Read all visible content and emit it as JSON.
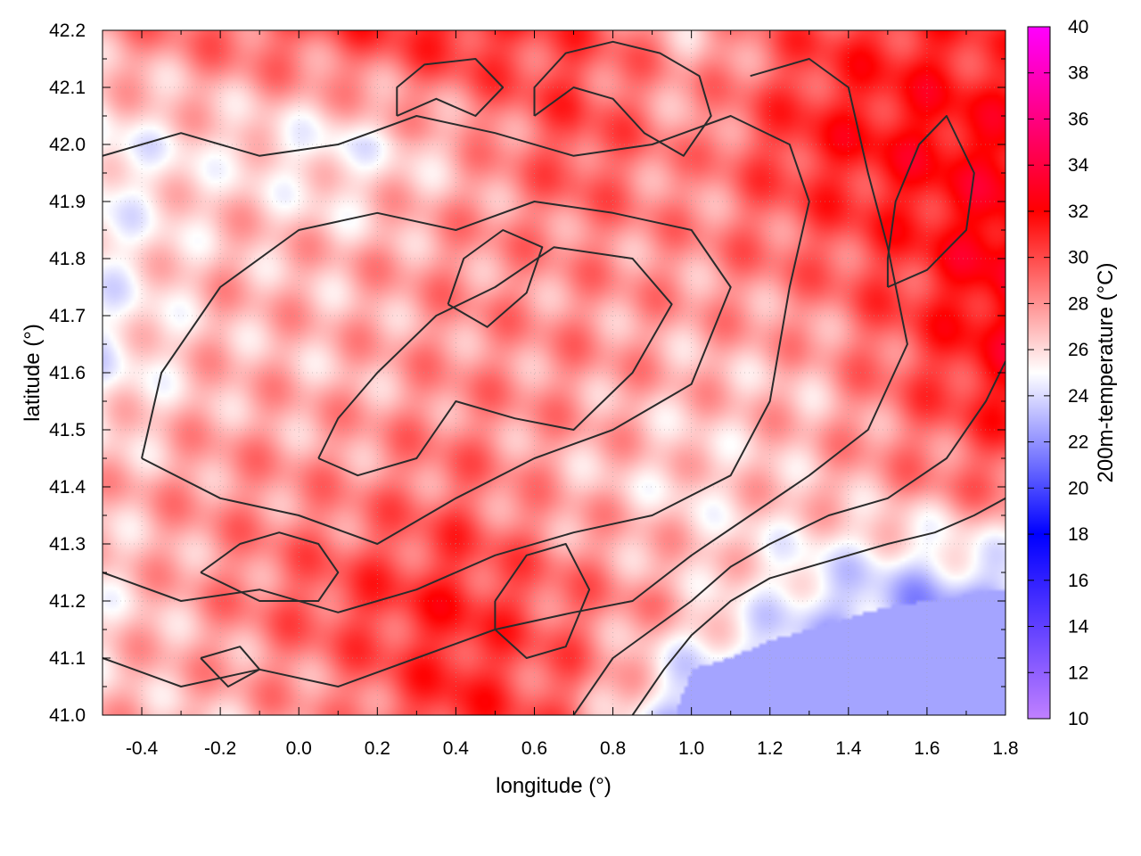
{
  "chart_data": {
    "type": "heatmap",
    "title": "",
    "xlabel": "longitude (°)",
    "ylabel": "latitude (°)",
    "colorbar_label": "200m-temperature (°C)",
    "xlim": [
      -0.5,
      1.8
    ],
    "ylim": [
      41.0,
      42.2
    ],
    "zlim": [
      10,
      40
    ],
    "x_ticks": [
      -0.4,
      -0.2,
      0.0,
      0.2,
      0.4,
      0.6,
      0.8,
      1.0,
      1.2,
      1.4,
      1.6,
      1.8
    ],
    "x_tick_labels": [
      "-0.4",
      "-0.2",
      "0.0",
      "0.2",
      "0.4",
      "0.6",
      "0.8",
      "1.0",
      "1.2",
      "1.4",
      "1.6",
      "1.8"
    ],
    "y_ticks": [
      41.0,
      41.1,
      41.2,
      41.3,
      41.4,
      41.5,
      41.6,
      41.7,
      41.8,
      41.9,
      42.0,
      42.1,
      42.2
    ],
    "y_tick_labels": [
      "41.0",
      "41.1",
      "41.2",
      "41.3",
      "41.4",
      "41.5",
      "41.6",
      "41.7",
      "41.8",
      "41.9",
      "42.0",
      "42.1",
      "42.2"
    ],
    "z_ticks": [
      10,
      12,
      14,
      16,
      18,
      20,
      22,
      24,
      26,
      28,
      30,
      32,
      34,
      36,
      38,
      40
    ],
    "z_tick_labels": [
      "10",
      "12",
      "14",
      "16",
      "18",
      "20",
      "22",
      "24",
      "26",
      "28",
      "30",
      "32",
      "34",
      "36",
      "38",
      "40"
    ],
    "colormap": [
      {
        "value": 10,
        "color": "#c080ff"
      },
      {
        "value": 18,
        "color": "#0000ff"
      },
      {
        "value": 25,
        "color": "#ffffff"
      },
      {
        "value": 32,
        "color": "#ff0000"
      },
      {
        "value": 36,
        "color": "#ff0080"
      },
      {
        "value": 40,
        "color": "#ff00ff"
      }
    ],
    "grid": true,
    "sea_value": 22.5,
    "coastline": [
      [
        0.96,
        41.0
      ],
      [
        1.0,
        41.08
      ],
      [
        1.1,
        41.1
      ],
      [
        1.2,
        41.13
      ],
      [
        1.3,
        41.15
      ],
      [
        1.4,
        41.17
      ],
      [
        1.5,
        41.19
      ],
      [
        1.6,
        41.2
      ],
      [
        1.7,
        41.21
      ],
      [
        1.8,
        41.22
      ]
    ],
    "temperature_grid": {
      "x": [
        -0.5,
        -0.2,
        0.1,
        0.4,
        0.7,
        1.0,
        1.3,
        1.6,
        1.8
      ],
      "y": [
        41.0,
        41.2,
        41.4,
        41.6,
        41.8,
        42.0,
        42.2
      ],
      "z": [
        [
          27,
          27,
          28,
          31,
          29,
          22.5,
          22.5,
          22.5,
          22.5
        ],
        [
          26,
          28,
          30,
          31,
          29,
          27,
          24,
          22.5,
          22.5
        ],
        [
          27,
          28,
          28,
          29,
          27,
          26,
          27,
          28,
          29
        ],
        [
          25,
          27,
          27,
          28,
          28,
          27,
          27,
          30,
          32
        ],
        [
          25,
          27,
          27,
          28,
          28,
          28,
          29,
          31,
          33
        ],
        [
          25,
          26,
          25,
          27,
          30,
          28,
          31,
          32,
          32
        ],
        [
          28,
          29,
          30,
          31,
          30,
          27,
          30,
          31,
          30
        ]
      ]
    },
    "contours": [
      [
        [
          0.05,
          41.45
        ],
        [
          0.15,
          41.42
        ],
        [
          0.3,
          41.45
        ],
        [
          0.4,
          41.55
        ],
        [
          0.55,
          41.52
        ],
        [
          0.7,
          41.5
        ],
        [
          0.85,
          41.6
        ],
        [
          0.95,
          41.72
        ],
        [
          0.85,
          41.8
        ],
        [
          0.65,
          41.82
        ],
        [
          0.5,
          41.75
        ],
        [
          0.35,
          41.7
        ],
        [
          0.2,
          41.6
        ],
        [
          0.1,
          41.52
        ],
        [
          0.05,
          41.45
        ]
      ],
      [
        [
          -0.4,
          41.45
        ],
        [
          -0.2,
          41.38
        ],
        [
          0.0,
          41.35
        ],
        [
          0.2,
          41.3
        ],
        [
          0.4,
          41.38
        ],
        [
          0.6,
          41.45
        ],
        [
          0.8,
          41.5
        ],
        [
          1.0,
          41.58
        ],
        [
          1.1,
          41.75
        ],
        [
          1.0,
          41.85
        ],
        [
          0.8,
          41.88
        ],
        [
          0.6,
          41.9
        ],
        [
          0.4,
          41.85
        ],
        [
          0.2,
          41.88
        ],
        [
          0.0,
          41.85
        ],
        [
          -0.2,
          41.75
        ],
        [
          -0.35,
          41.6
        ],
        [
          -0.4,
          41.45
        ]
      ],
      [
        [
          -0.5,
          41.25
        ],
        [
          -0.3,
          41.2
        ],
        [
          -0.1,
          41.22
        ],
        [
          0.1,
          41.18
        ],
        [
          0.3,
          41.22
        ],
        [
          0.5,
          41.28
        ],
        [
          0.7,
          41.32
        ],
        [
          0.9,
          41.35
        ],
        [
          1.1,
          41.42
        ],
        [
          1.2,
          41.55
        ],
        [
          1.25,
          41.75
        ],
        [
          1.3,
          41.9
        ],
        [
          1.25,
          42.0
        ],
        [
          1.1,
          42.05
        ],
        [
          0.9,
          42.0
        ],
        [
          0.7,
          41.98
        ],
        [
          0.5,
          42.02
        ],
        [
          0.3,
          42.05
        ],
        [
          0.1,
          42.0
        ],
        [
          -0.1,
          41.98
        ],
        [
          -0.3,
          42.02
        ],
        [
          -0.5,
          41.98
        ]
      ],
      [
        [
          -0.5,
          41.1
        ],
        [
          -0.3,
          41.05
        ],
        [
          -0.1,
          41.08
        ],
        [
          0.1,
          41.05
        ],
        [
          0.3,
          41.1
        ],
        [
          0.5,
          41.15
        ],
        [
          0.7,
          41.18
        ],
        [
          0.85,
          41.2
        ],
        [
          1.0,
          41.28
        ],
        [
          1.15,
          41.35
        ],
        [
          1.3,
          41.42
        ],
        [
          1.45,
          41.5
        ],
        [
          1.55,
          41.65
        ],
        [
          1.5,
          41.82
        ],
        [
          1.45,
          41.95
        ],
        [
          1.4,
          42.1
        ],
        [
          1.3,
          42.15
        ],
        [
          1.15,
          42.12
        ]
      ],
      [
        [
          0.7,
          41.0
        ],
        [
          0.8,
          41.1
        ],
        [
          0.9,
          41.15
        ],
        [
          1.0,
          41.2
        ],
        [
          1.1,
          41.26
        ],
        [
          1.2,
          41.3
        ],
        [
          1.35,
          41.35
        ],
        [
          1.5,
          41.38
        ],
        [
          1.65,
          41.45
        ],
        [
          1.75,
          41.55
        ],
        [
          1.8,
          41.62
        ]
      ],
      [
        [
          0.85,
          41.0
        ],
        [
          0.93,
          41.08
        ],
        [
          1.0,
          41.14
        ],
        [
          1.1,
          41.2
        ],
        [
          1.2,
          41.24
        ],
        [
          1.35,
          41.27
        ],
        [
          1.5,
          41.3
        ],
        [
          1.62,
          41.32
        ],
        [
          1.72,
          41.35
        ],
        [
          1.8,
          41.38
        ]
      ],
      [
        [
          0.38,
          41.72
        ],
        [
          0.48,
          41.68
        ],
        [
          0.58,
          41.74
        ],
        [
          0.62,
          41.82
        ],
        [
          0.52,
          41.85
        ],
        [
          0.42,
          41.8
        ],
        [
          0.38,
          41.72
        ]
      ],
      [
        [
          0.6,
          42.05
        ],
        [
          0.7,
          42.1
        ],
        [
          0.8,
          42.08
        ],
        [
          0.88,
          42.02
        ],
        [
          0.98,
          41.98
        ],
        [
          1.05,
          42.05
        ],
        [
          1.02,
          42.12
        ],
        [
          0.92,
          42.16
        ],
        [
          0.8,
          42.18
        ],
        [
          0.68,
          42.16
        ],
        [
          0.6,
          42.1
        ],
        [
          0.6,
          42.05
        ]
      ],
      [
        [
          0.25,
          42.05
        ],
        [
          0.35,
          42.08
        ],
        [
          0.45,
          42.05
        ],
        [
          0.52,
          42.1
        ],
        [
          0.45,
          42.15
        ],
        [
          0.32,
          42.14
        ],
        [
          0.25,
          42.1
        ],
        [
          0.25,
          42.05
        ]
      ],
      [
        [
          1.5,
          41.75
        ],
        [
          1.6,
          41.78
        ],
        [
          1.7,
          41.85
        ],
        [
          1.72,
          41.95
        ],
        [
          1.65,
          42.05
        ],
        [
          1.58,
          42.0
        ],
        [
          1.52,
          41.9
        ],
        [
          1.5,
          41.8
        ],
        [
          1.5,
          41.75
        ]
      ],
      [
        [
          -0.25,
          41.25
        ],
        [
          -0.15,
          41.3
        ],
        [
          -0.05,
          41.32
        ],
        [
          0.05,
          41.3
        ],
        [
          0.1,
          41.25
        ],
        [
          0.05,
          41.2
        ],
        [
          -0.1,
          41.2
        ],
        [
          -0.25,
          41.25
        ]
      ],
      [
        [
          0.5,
          41.2
        ],
        [
          0.58,
          41.28
        ],
        [
          0.68,
          41.3
        ],
        [
          0.74,
          41.22
        ],
        [
          0.68,
          41.12
        ],
        [
          0.58,
          41.1
        ],
        [
          0.5,
          41.15
        ],
        [
          0.5,
          41.2
        ]
      ],
      [
        [
          -0.25,
          41.1
        ],
        [
          -0.15,
          41.12
        ],
        [
          -0.1,
          41.08
        ],
        [
          -0.18,
          41.05
        ],
        [
          -0.25,
          41.1
        ]
      ]
    ]
  }
}
